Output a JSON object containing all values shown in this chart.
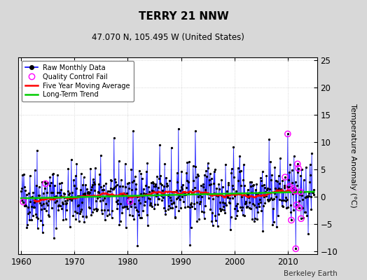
{
  "title": "TERRY 21 NNW",
  "subtitle": "47.070 N, 105.495 W (United States)",
  "ylabel": "Temperature Anomaly (°C)",
  "credit": "Berkeley Earth",
  "xlim": [
    1959.5,
    2015.5
  ],
  "ylim": [
    -10.5,
    25.5
  ],
  "yticks": [
    -10,
    -5,
    0,
    5,
    10,
    15,
    20,
    25
  ],
  "xticks": [
    1960,
    1970,
    1980,
    1990,
    2000,
    2010
  ],
  "bg_color": "#d8d8d8",
  "plot_bg_color": "#ffffff",
  "raw_line_color": "#0000ff",
  "raw_dot_color": "#000000",
  "ma_color": "#ff0000",
  "trend_color": "#00cc00",
  "qc_color": "#ff00ff",
  "seed": 42,
  "start_year": 1960,
  "end_year": 2015,
  "noise_scale": 2.8,
  "ma_window": 60
}
